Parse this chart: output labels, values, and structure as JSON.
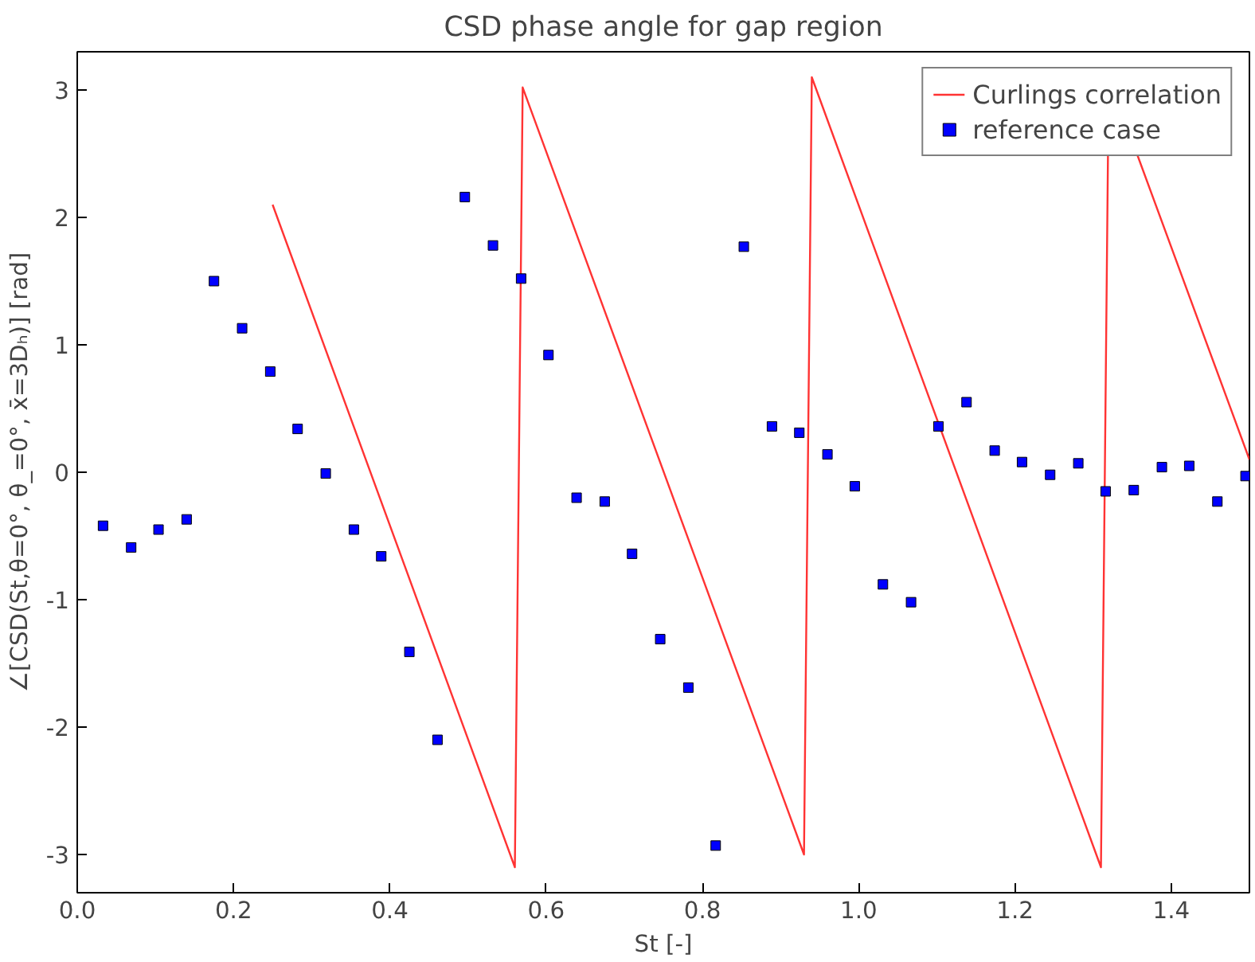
{
  "chart_data": {
    "type": "line",
    "title": "CSD phase angle for gap region",
    "xlabel": "St [-]",
    "ylabel": "∠[CSD(St,θ=0°, θ_=0°, x̄=3Dₕ)] [rad]",
    "xlim": [
      0,
      1.5
    ],
    "ylim": [
      -3.3,
      3.3
    ],
    "xticks": [
      {
        "value": 0,
        "label": "0.0"
      },
      {
        "value": 0.2,
        "label": "0.2"
      },
      {
        "value": 0.4,
        "label": "0.4"
      },
      {
        "value": 0.6,
        "label": "0.6"
      },
      {
        "value": 0.8,
        "label": "0.8"
      },
      {
        "value": 1.0,
        "label": "1.0"
      },
      {
        "value": 1.2,
        "label": "1.2"
      },
      {
        "value": 1.4,
        "label": "1.4"
      }
    ],
    "yticks": [
      -3,
      -2,
      -1,
      0,
      1,
      2,
      3
    ],
    "grid": false,
    "legend": "top right",
    "series": [
      {
        "name": "Curlings correlation",
        "color": "#ff3333",
        "marker": "none",
        "x": [
          0.25,
          0.56,
          0.57,
          0.93,
          0.94,
          1.31,
          1.319,
          1.32,
          1.356,
          1.5
        ],
        "values": [
          2.1,
          -3.1,
          3.02,
          -3.0,
          3.1,
          -3.1,
          2.5,
          null,
          2.5,
          0.1
        ]
      },
      {
        "name": "reference case",
        "type": "scatter",
        "color": "#0000ff",
        "marker": "square",
        "x": [
          0.033,
          0.069,
          0.104,
          0.14,
          0.175,
          0.211,
          0.247,
          0.282,
          0.318,
          0.354,
          0.389,
          0.425,
          0.461,
          0.496,
          0.532,
          0.568,
          0.603,
          0.639,
          0.675,
          0.71,
          0.746,
          0.782,
          0.817,
          0.853,
          0.889,
          0.924,
          0.96,
          0.995,
          1.031,
          1.067,
          1.102,
          1.138,
          1.174,
          1.209,
          1.245,
          1.281,
          1.316,
          1.352,
          1.388,
          1.423,
          1.459,
          1.495
        ],
        "values": [
          -0.42,
          -0.59,
          -0.45,
          -0.37,
          1.5,
          1.13,
          0.79,
          0.34,
          -0.01,
          -0.45,
          -0.66,
          -1.41,
          -2.1,
          2.16,
          1.78,
          1.52,
          0.92,
          -0.2,
          -0.23,
          -0.64,
          -1.31,
          -1.69,
          -2.93,
          1.77,
          0.36,
          0.31,
          0.14,
          -0.11,
          -0.88,
          -1.02,
          0.36,
          0.55,
          0.17,
          0.08,
          -0.02,
          0.07,
          -0.15,
          -0.14,
          0.04,
          0.05,
          -0.23,
          -0.03
        ]
      }
    ]
  }
}
